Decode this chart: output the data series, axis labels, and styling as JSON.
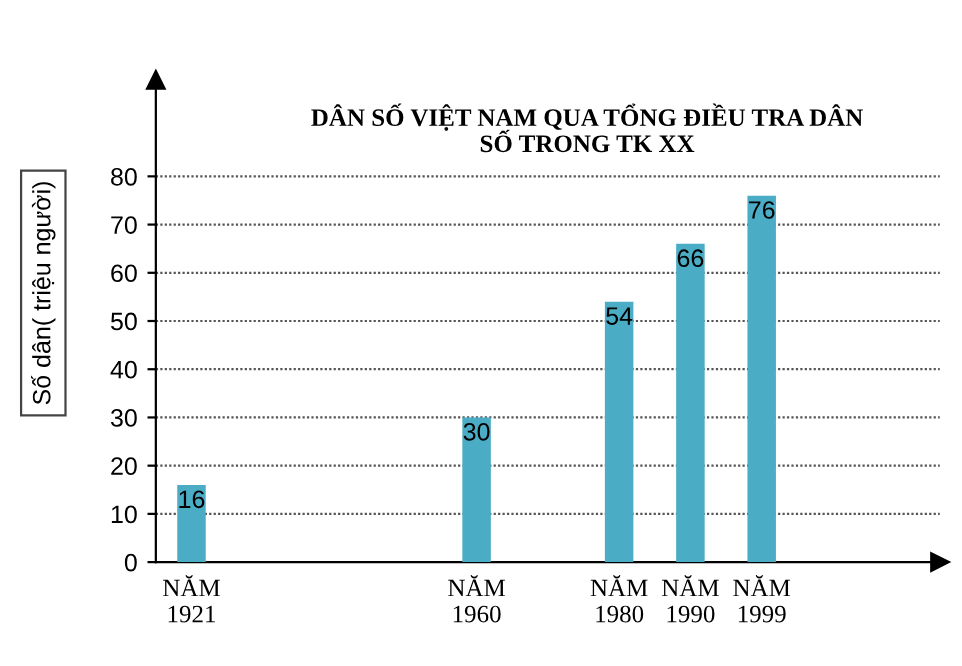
{
  "chart_data": {
    "type": "bar",
    "title": "DÂN SỐ VIỆT NAM QUA TỔNG ĐIỀU TRA DÂN\nSỐ TRONG TK XX",
    "ylabel": "Số dân( triệu người)",
    "categories": [
      "NĂM\n1921",
      null,
      null,
      null,
      "NĂM\n1960",
      null,
      "NĂM\n1980",
      "NĂM\n1990",
      "NĂM\n1999"
    ],
    "values": [
      16,
      null,
      null,
      null,
      30,
      null,
      54,
      66,
      76
    ],
    "color": "#4bacc6",
    "data_labels": true,
    "ylim": [
      0,
      100
    ],
    "yticks": [
      0,
      10,
      20,
      30,
      40,
      50,
      60,
      70,
      80
    ],
    "grid": "y",
    "legend": false
  }
}
